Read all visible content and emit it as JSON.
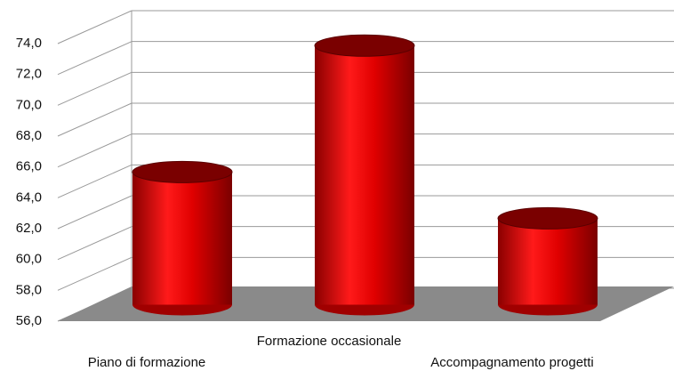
{
  "chart_data": {
    "type": "bar",
    "categories": [
      "Piano di formazione",
      "Formazione occasionale",
      "Accompagnamento progetti"
    ],
    "values": [
      64.6,
      72.8,
      61.6
    ],
    "color": "#e00000",
    "ylim": [
      56,
      74
    ],
    "yticks": [
      {
        "value": 56,
        "label": "56,0"
      },
      {
        "value": 58,
        "label": "58,0"
      },
      {
        "value": 60,
        "label": "60,0"
      },
      {
        "value": 62,
        "label": "62,0"
      },
      {
        "value": 64,
        "label": "64,0"
      },
      {
        "value": 66,
        "label": "66,0"
      },
      {
        "value": 68,
        "label": "68,0"
      },
      {
        "value": 70,
        "label": "70,0"
      },
      {
        "value": 72,
        "label": "72,0"
      },
      {
        "value": 74,
        "label": "74,0"
      }
    ],
    "grid": true
  }
}
